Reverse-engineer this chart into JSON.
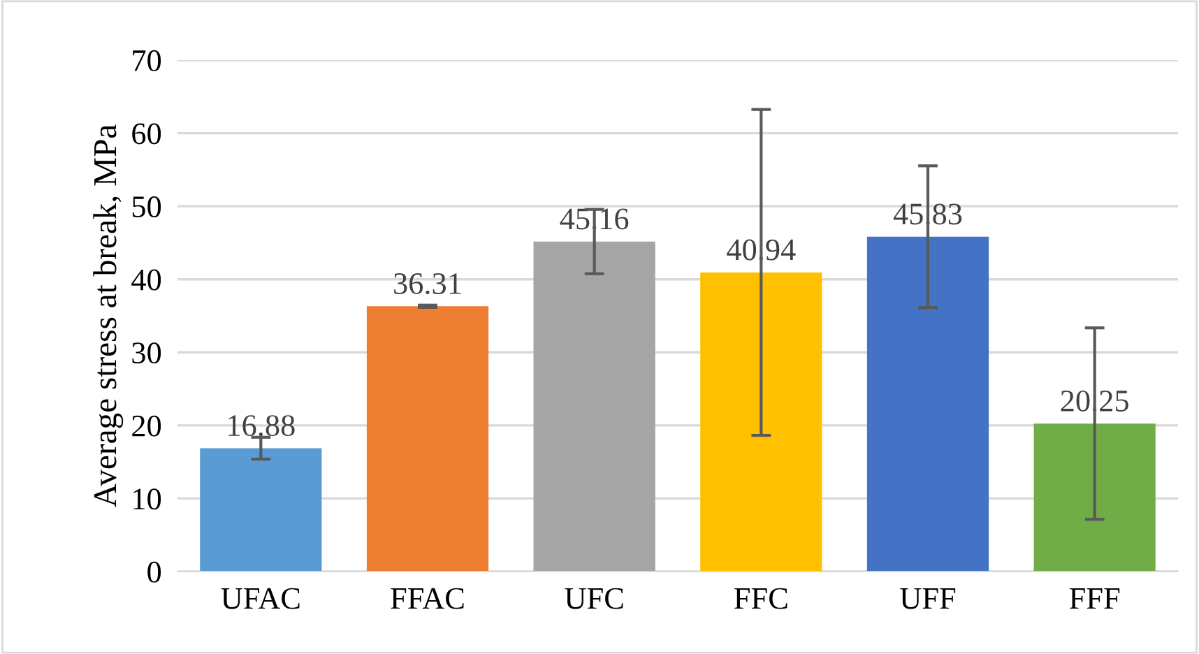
{
  "chart_data": {
    "type": "bar",
    "ylabel": "Average stress at break, MPa",
    "categories": [
      "UFAC",
      "FFAC",
      "UFC",
      "FFC",
      "UFF",
      "FFF"
    ],
    "values": [
      16.88,
      36.31,
      45.16,
      40.94,
      45.83,
      20.25
    ],
    "errors": [
      1.5,
      0.15,
      4.4,
      22.3,
      9.7,
      13.1
    ],
    "colors": [
      "#5b9bd5",
      "#ed7d31",
      "#a5a5a5",
      "#ffc000",
      "#4472c4",
      "#70ad47"
    ],
    "ylim": [
      0,
      70
    ],
    "yticks": [
      0,
      10,
      20,
      30,
      40,
      50,
      60,
      70
    ],
    "grid": "y",
    "data_labels": true
  }
}
